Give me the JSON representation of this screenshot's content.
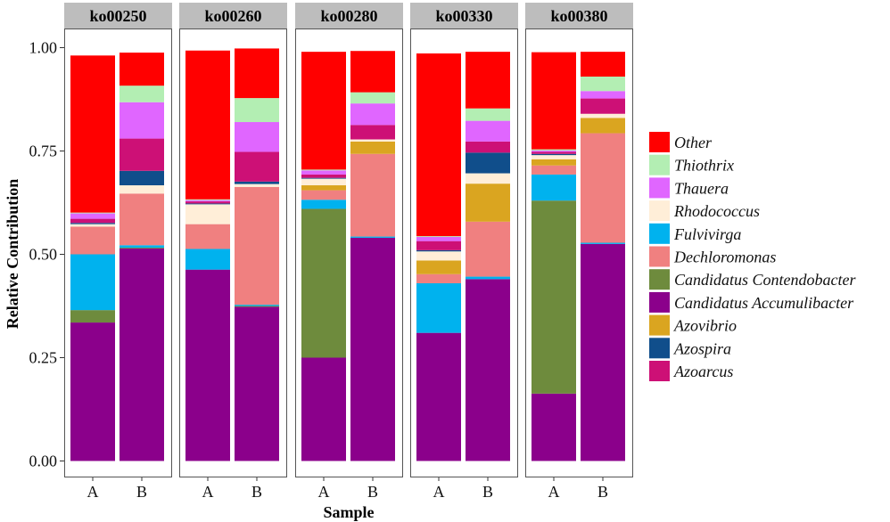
{
  "chart_data": {
    "type": "bar",
    "stacked": true,
    "facets": [
      "ko00250",
      "ko00260",
      "ko00280",
      "ko00330",
      "ko00380"
    ],
    "categories": [
      "A",
      "B"
    ],
    "xlabel": "Sample",
    "ylabel": "Relative Contribution",
    "ylim": [
      0,
      1
    ],
    "yticks": [
      "0.00",
      "0.25",
      "0.50",
      "0.75",
      "1.00"
    ],
    "legend_position": "right",
    "legend_style": "italic",
    "stack_order": [
      "Candidatus Accumulibacter",
      "Candidatus Contendobacter",
      "Fulvivirga",
      "Dechloromonas",
      "Azovibrio",
      "Rhodococcus",
      "Azospira",
      "Azoarcus",
      "Thauera",
      "Thiothrix",
      "Other"
    ],
    "series": [
      {
        "name": "Other",
        "color": "#FF0000",
        "values": [
          [
            0.38,
            0.08
          ],
          [
            0.36,
            0.12
          ],
          [
            0.285,
            0.1
          ],
          [
            0.442,
            0.137
          ],
          [
            0.235,
            0.06
          ]
        ]
      },
      {
        "name": "Thiothrix",
        "color": "#B3EEB3",
        "values": [
          [
            0.002,
            0.04
          ],
          [
            0.002,
            0.058
          ],
          [
            0.002,
            0.027
          ],
          [
            0.002,
            0.03
          ],
          [
            0.003,
            0.035
          ]
        ]
      },
      {
        "name": "Thauera",
        "color": "#E066FF",
        "values": [
          [
            0.013,
            0.088
          ],
          [
            0.003,
            0.072
          ],
          [
            0.01,
            0.052
          ],
          [
            0.01,
            0.05
          ],
          [
            0.003,
            0.018
          ]
        ]
      },
      {
        "name": "Rhodococcus",
        "color": "#FFEED8",
        "values": [
          [
            0.006,
            0.02
          ],
          [
            0.048,
            0.007
          ],
          [
            0.016,
            0.005
          ],
          [
            0.022,
            0.025
          ],
          [
            0.01,
            0.01
          ]
        ]
      },
      {
        "name": "Fulvivirga",
        "color": "#00B2EE",
        "values": [
          [
            0.135,
            0.006
          ],
          [
            0.05,
            0.003
          ],
          [
            0.022,
            0.003
          ],
          [
            0.12,
            0.006
          ],
          [
            0.063,
            0.003
          ]
        ]
      },
      {
        "name": "Dechloromonas",
        "color": "#F08080",
        "values": [
          [
            0.067,
            0.125
          ],
          [
            0.06,
            0.285
          ],
          [
            0.023,
            0.2
          ],
          [
            0.022,
            0.133
          ],
          [
            0.022,
            0.265
          ]
        ]
      },
      {
        "name": "Candidatus Contendobacter",
        "color": "#6E8B3D",
        "values": [
          [
            0.03,
            0.002
          ],
          [
            0.0,
            0.002
          ],
          [
            0.36,
            0.0
          ],
          [
            0.0,
            0.0
          ],
          [
            0.467,
            0.0
          ]
        ]
      },
      {
        "name": "Candidatus Accumulibacter",
        "color": "#8B008B",
        "values": [
          [
            0.335,
            0.514
          ],
          [
            0.463,
            0.373
          ],
          [
            0.25,
            0.54
          ],
          [
            0.31,
            0.44
          ],
          [
            0.163,
            0.525
          ]
        ]
      },
      {
        "name": "Azovibrio",
        "color": "#DAA520",
        "values": [
          [
            0.0,
            0.0
          ],
          [
            0.0,
            0.0
          ],
          [
            0.012,
            0.03
          ],
          [
            0.033,
            0.092
          ],
          [
            0.015,
            0.037
          ]
        ]
      },
      {
        "name": "Azospira",
        "color": "#104E8B",
        "values": [
          [
            0.003,
            0.035
          ],
          [
            0.002,
            0.006
          ],
          [
            0.002,
            0.0
          ],
          [
            0.003,
            0.05
          ],
          [
            0.003,
            0.0
          ]
        ]
      },
      {
        "name": "Azoarcus",
        "color": "#CD1076",
        "values": [
          [
            0.01,
            0.078
          ],
          [
            0.005,
            0.072
          ],
          [
            0.008,
            0.035
          ],
          [
            0.022,
            0.027
          ],
          [
            0.005,
            0.037
          ]
        ]
      }
    ]
  }
}
